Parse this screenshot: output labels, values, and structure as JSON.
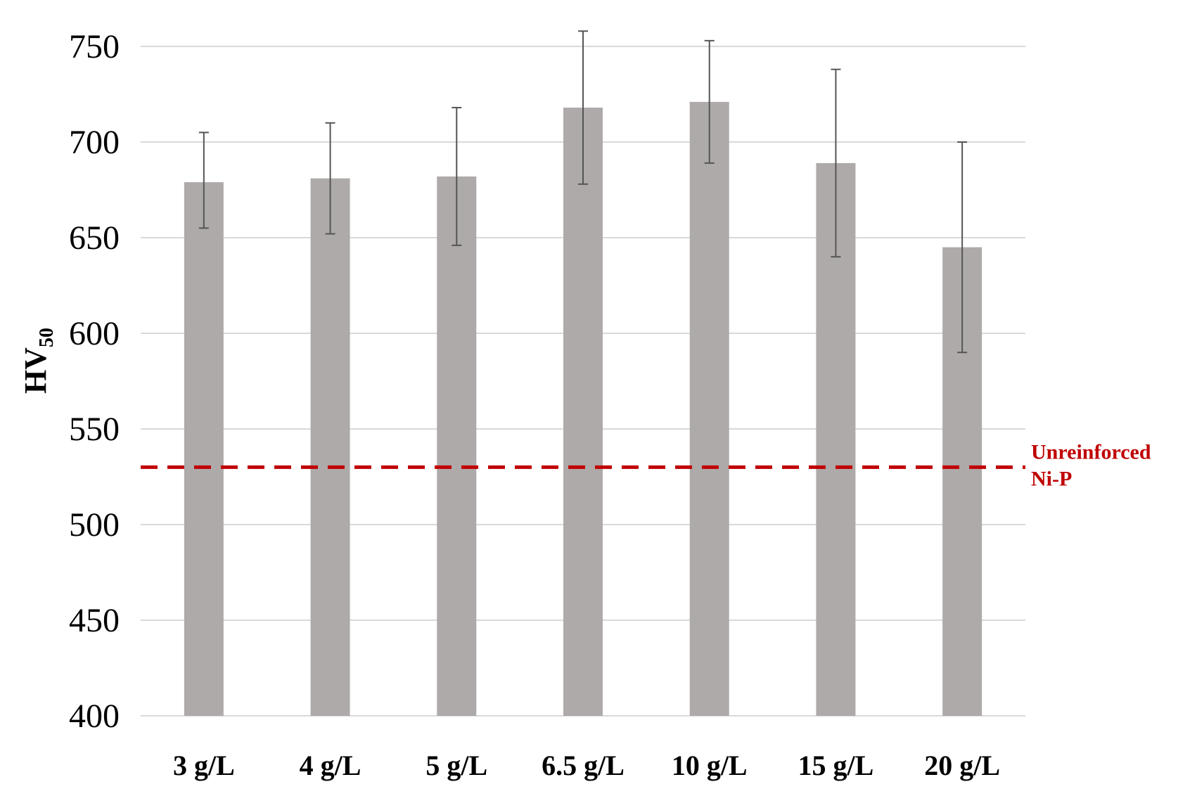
{
  "chart_data": {
    "type": "bar",
    "categories": [
      "3 g/L",
      "4 g/L",
      "5 g/L",
      "6.5 g/L",
      "10 g/L",
      "15 g/L",
      "20 g/L"
    ],
    "values": [
      679,
      681,
      682,
      718,
      721,
      689,
      645
    ],
    "error_low": [
      655,
      652,
      646,
      678,
      689,
      640,
      590
    ],
    "error_high": [
      705,
      710,
      718,
      758,
      753,
      738,
      700
    ],
    "ylabel": "HV",
    "ylabel_subscript": "50",
    "ylim": [
      400,
      750
    ],
    "yticks": [
      400,
      450,
      500,
      550,
      600,
      650,
      700,
      750
    ],
    "grid": true,
    "bar_color": "#aeaaa9",
    "reference_line": {
      "value": 530,
      "label_lines": [
        "Unreinforced",
        "Ni-P"
      ],
      "color": "#c00000",
      "style": "dashed"
    }
  }
}
